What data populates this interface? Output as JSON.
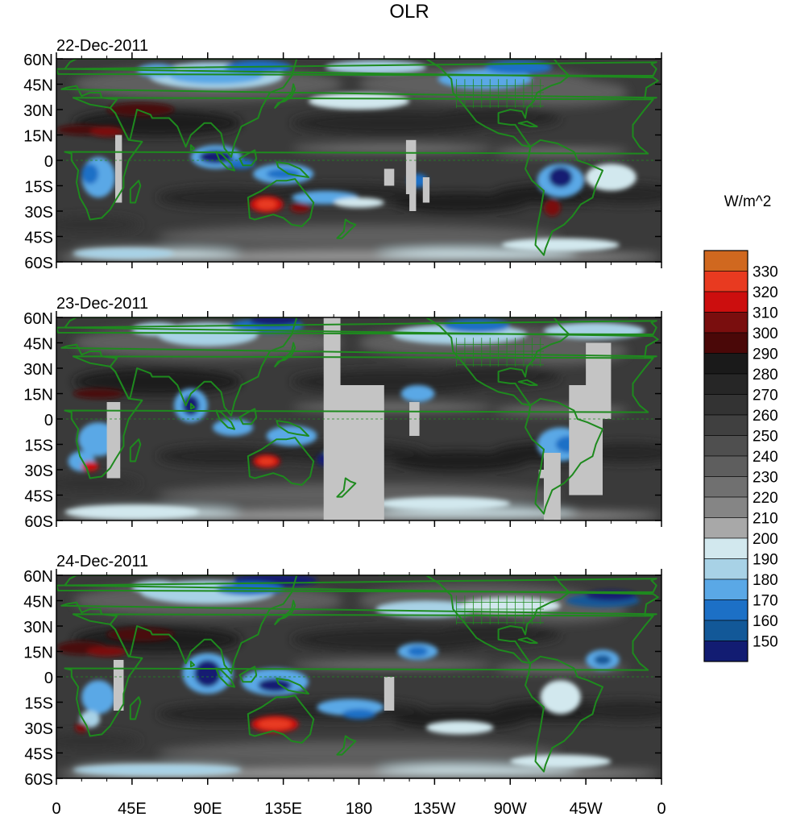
{
  "title": "OLR",
  "units": "W/m^2",
  "panels": [
    {
      "date": "22-Dec-2011"
    },
    {
      "date": "23-Dec-2011"
    },
    {
      "date": "24-Dec-2011"
    }
  ],
  "lat_ticks": [
    "60N",
    "45N",
    "30N",
    "15N",
    "0",
    "15S",
    "30S",
    "45S",
    "60S"
  ],
  "lon_ticks": [
    "0",
    "45E",
    "90E",
    "135E",
    "180",
    "135W",
    "90W",
    "45W",
    "0"
  ],
  "colorbar": {
    "labels": [
      "330",
      "320",
      "310",
      "300",
      "290",
      "280",
      "270",
      "260",
      "250",
      "240",
      "230",
      "220",
      "210",
      "200",
      "190",
      "180",
      "170",
      "160",
      "150"
    ],
    "colors": [
      "#d0681f",
      "#e83a20",
      "#cc0e0e",
      "#7a0e0e",
      "#4a0808",
      "#1a1a1a",
      "#262626",
      "#333333",
      "#404040",
      "#4f4f4f",
      "#5e5e5e",
      "#707070",
      "#858585",
      "#a8a8a8",
      "#d2e8ee",
      "#a8d2e6",
      "#5aa8e6",
      "#1c70c6",
      "#125898",
      "#121c72"
    ]
  },
  "colors": {
    "coast": "#1e8a1e",
    "missing": "#c4c4c4"
  }
}
